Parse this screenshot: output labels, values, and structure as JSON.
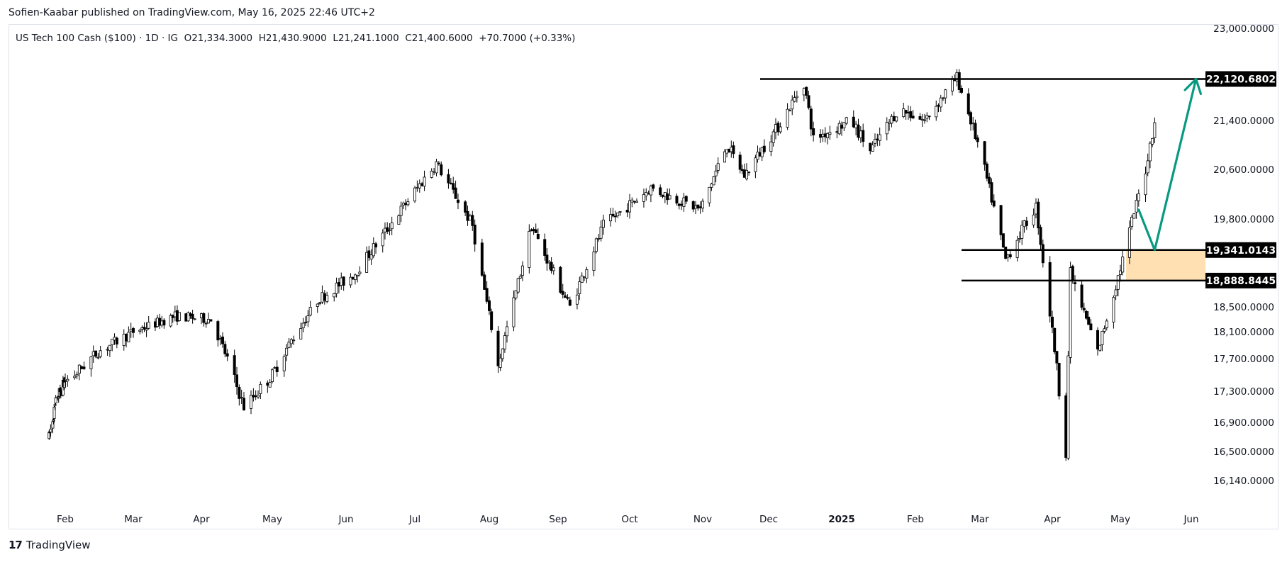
{
  "publisher": "Sofien-Kaabar published on TradingView.com, May 16, 2025 22:46 UTC+2",
  "footer": {
    "brand": "TradingView"
  },
  "legend": {
    "symbol": "US Tech 100 Cash ($100) · 1D · IG",
    "open": "O21,334.3000",
    "high": "H21,430.9000",
    "low": "L21,241.1000",
    "close": "C21,400.6000",
    "change": "+70.7000 (+0.33%)"
  },
  "colors": {
    "candle": "#000000",
    "line": "#000000",
    "arrow": "#089981",
    "zone": "#ffe0b2",
    "badge": "#000000"
  },
  "chart_data": {
    "type": "candlestick",
    "y_ticks": [
      "23,000.0000",
      "21,400.0000",
      "20,600.0000",
      "19,800.0000",
      "18,500.0000",
      "18,100.0000",
      "17,700.0000",
      "17,300.0000",
      "16,900.0000",
      "16,500.0000",
      "16,140.0000"
    ],
    "x_ticks": [
      "Feb",
      "Mar",
      "Apr",
      "May",
      "Jun",
      "Jul",
      "Aug",
      "Sep",
      "Oct",
      "Nov",
      "Dec",
      "2025",
      "Feb",
      "Mar",
      "Apr",
      "May",
      "Jun"
    ],
    "levels": [
      {
        "price": 22120.6802,
        "label": "22,120.6802"
      },
      {
        "price": 19341.0143,
        "label": "19,341.0143"
      },
      {
        "price": 18888.8445,
        "label": "18,888.8445"
      }
    ],
    "zone": {
      "from": 18888.8445,
      "to": 19341.0143
    },
    "price_path": [
      {
        "date": "2024-01-10",
        "price": 16700
      },
      {
        "date": "2024-01-20",
        "price": 17200
      },
      {
        "date": "2024-02-05",
        "price": 17500
      },
      {
        "date": "2024-02-15",
        "price": 17800
      },
      {
        "date": "2024-03-01",
        "price": 18100
      },
      {
        "date": "2024-03-20",
        "price": 18350
      },
      {
        "date": "2024-04-05",
        "price": 18300
      },
      {
        "date": "2024-04-19",
        "price": 17100
      },
      {
        "date": "2024-05-01",
        "price": 17500
      },
      {
        "date": "2024-05-20",
        "price": 18600
      },
      {
        "date": "2024-06-05",
        "price": 19000
      },
      {
        "date": "2024-06-20",
        "price": 19700
      },
      {
        "date": "2024-07-10",
        "price": 20700
      },
      {
        "date": "2024-07-25",
        "price": 19700
      },
      {
        "date": "2024-08-05",
        "price": 17600
      },
      {
        "date": "2024-08-20",
        "price": 19700
      },
      {
        "date": "2024-09-06",
        "price": 18500
      },
      {
        "date": "2024-09-20",
        "price": 19700
      },
      {
        "date": "2024-10-10",
        "price": 20300
      },
      {
        "date": "2024-10-31",
        "price": 19950
      },
      {
        "date": "2024-11-12",
        "price": 21000
      },
      {
        "date": "2024-11-20",
        "price": 20500
      },
      {
        "date": "2024-12-05",
        "price": 21300
      },
      {
        "date": "2024-12-16",
        "price": 22050
      },
      {
        "date": "2024-12-20",
        "price": 21100
      },
      {
        "date": "2025-01-05",
        "price": 21400
      },
      {
        "date": "2025-01-13",
        "price": 20900
      },
      {
        "date": "2025-01-25",
        "price": 21600
      },
      {
        "date": "2025-02-05",
        "price": 21400
      },
      {
        "date": "2025-02-19",
        "price": 22150
      },
      {
        "date": "2025-03-01",
        "price": 20900
      },
      {
        "date": "2025-03-12",
        "price": 19200
      },
      {
        "date": "2025-03-25",
        "price": 20000
      },
      {
        "date": "2025-04-07",
        "price": 16500
      },
      {
        "date": "2025-04-09",
        "price": 19000
      },
      {
        "date": "2025-04-21",
        "price": 17800
      },
      {
        "date": "2025-05-02",
        "price": 19200
      },
      {
        "date": "2025-05-12",
        "price": 20600
      },
      {
        "date": "2025-05-16",
        "price": 21400
      }
    ],
    "projection": [
      {
        "date": "2025-05-09",
        "price": 19950
      },
      {
        "date": "2025-05-16",
        "price": 19341
      },
      {
        "date": "2025-06-03",
        "price": 22120
      }
    ]
  }
}
